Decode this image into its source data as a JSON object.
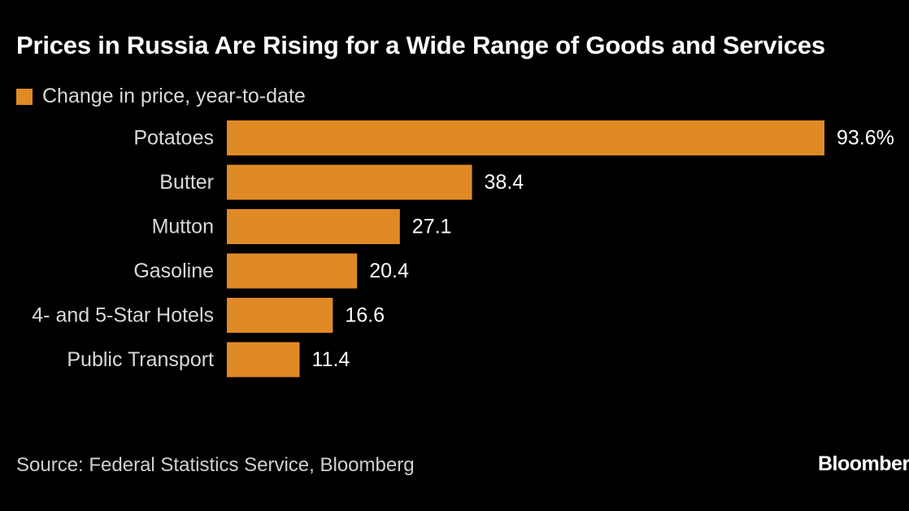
{
  "header": {
    "title": "Prices in Russia Are Rising for a Wide Range of Goods and Services"
  },
  "legend": {
    "label": "Change in price, year-to-date",
    "color": "#e08a26"
  },
  "chart_data": {
    "type": "bar",
    "orientation": "horizontal",
    "title": "Prices in Russia Are Rising for a Wide Range of Goods and Services",
    "categories": [
      "Potatoes",
      "Butter",
      "Mutton",
      "Gasoline",
      "4- and 5-Star Hotels",
      "Public Transport"
    ],
    "values": [
      93.6,
      38.4,
      27.1,
      20.4,
      16.6,
      11.4
    ],
    "value_labels": [
      "93.6%",
      "38.4",
      "27.1",
      "20.4",
      "16.6",
      "11.4"
    ],
    "series": [
      {
        "name": "Change in price, year-to-date",
        "values": [
          93.6,
          38.4,
          27.1,
          20.4,
          16.6,
          11.4
        ]
      }
    ],
    "bar_color": "#e08a26",
    "xlim": [
      0,
      93.6
    ],
    "grid": false,
    "legend_position": "top-left"
  },
  "footer": {
    "source": "Source: Federal Statistics Service, Bloomberg",
    "logo_text": "Bloomberg"
  }
}
